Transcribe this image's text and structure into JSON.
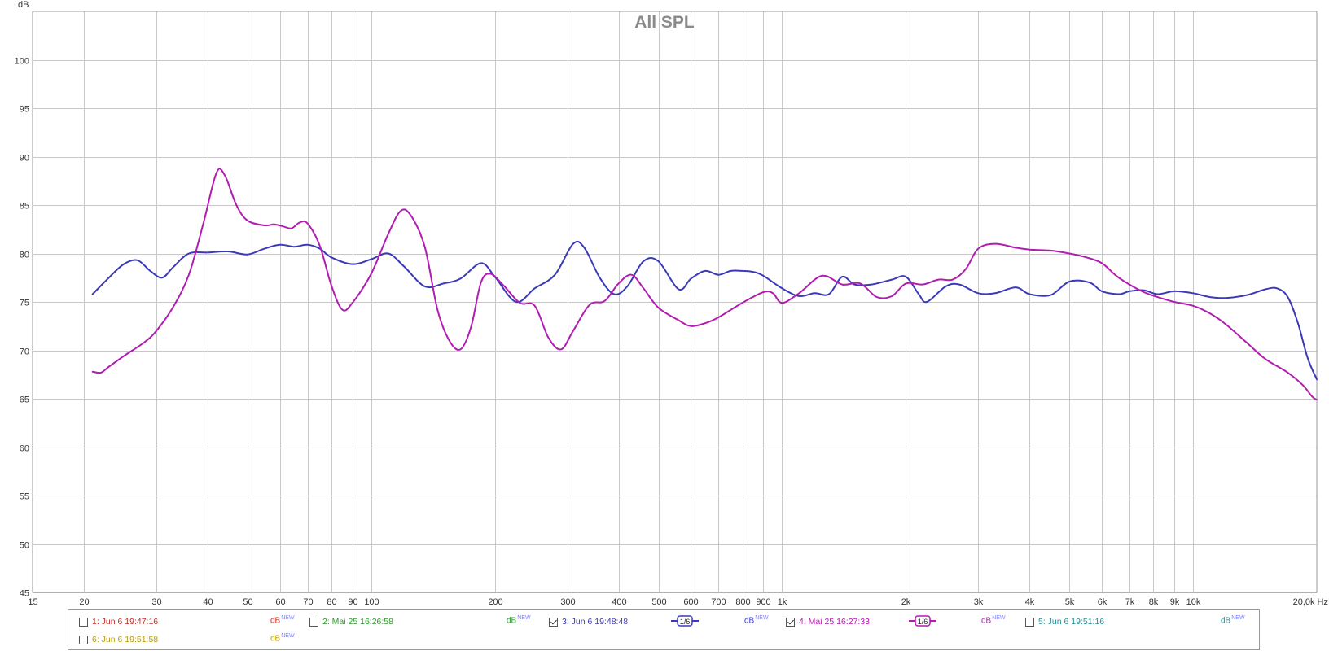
{
  "chart_data": {
    "type": "line",
    "title": "All SPL",
    "ylabel": "dB",
    "xlabel": "Hz",
    "xscale": "log",
    "xlim": [
      15,
      20000
    ],
    "ylim": [
      45,
      105
    ],
    "grid": true,
    "y_ticks": [
      45,
      50,
      55,
      60,
      65,
      70,
      75,
      80,
      85,
      90,
      95,
      100
    ],
    "x_ticks": [
      {
        "value": 15,
        "label": "15"
      },
      {
        "value": 20,
        "label": "20"
      },
      {
        "value": 30,
        "label": "30"
      },
      {
        "value": 40,
        "label": "40"
      },
      {
        "value": 50,
        "label": "50"
      },
      {
        "value": 60,
        "label": "60"
      },
      {
        "value": 70,
        "label": "70"
      },
      {
        "value": 80,
        "label": "80"
      },
      {
        "value": 90,
        "label": "90"
      },
      {
        "value": 100,
        "label": "100"
      },
      {
        "value": 200,
        "label": "200"
      },
      {
        "value": 300,
        "label": "300"
      },
      {
        "value": 400,
        "label": "400"
      },
      {
        "value": 500,
        "label": "500"
      },
      {
        "value": 600,
        "label": "600"
      },
      {
        "value": 700,
        "label": "700"
      },
      {
        "value": 800,
        "label": "800"
      },
      {
        "value": 900,
        "label": "900"
      },
      {
        "value": 1000,
        "label": "1k"
      },
      {
        "value": 2000,
        "label": "2k"
      },
      {
        "value": 3000,
        "label": "3k"
      },
      {
        "value": 4000,
        "label": "4k"
      },
      {
        "value": 5000,
        "label": "5k"
      },
      {
        "value": 6000,
        "label": "6k"
      },
      {
        "value": 7000,
        "label": "7k"
      },
      {
        "value": 8000,
        "label": "8k"
      },
      {
        "value": 9000,
        "label": "9k"
      },
      {
        "value": 10000,
        "label": "10k"
      },
      {
        "value": 20000,
        "label": "20,0k Hz"
      }
    ],
    "series": [
      {
        "name": "3: Jun 6 19:48:48",
        "color": "#3a3ab8",
        "points": [
          [
            21,
            75.8
          ],
          [
            23,
            77.5
          ],
          [
            25,
            78.9
          ],
          [
            27,
            79.3
          ],
          [
            29,
            78.2
          ],
          [
            31,
            77.5
          ],
          [
            33,
            78.6
          ],
          [
            36,
            80.0
          ],
          [
            40,
            80.1
          ],
          [
            45,
            80.2
          ],
          [
            50,
            79.9
          ],
          [
            55,
            80.5
          ],
          [
            60,
            80.9
          ],
          [
            65,
            80.7
          ],
          [
            70,
            80.9
          ],
          [
            75,
            80.5
          ],
          [
            80,
            79.6
          ],
          [
            90,
            78.9
          ],
          [
            100,
            79.4
          ],
          [
            110,
            80.0
          ],
          [
            120,
            78.7
          ],
          [
            135,
            76.6
          ],
          [
            150,
            76.9
          ],
          [
            165,
            77.4
          ],
          [
            185,
            79.0
          ],
          [
            200,
            77.6
          ],
          [
            225,
            75.0
          ],
          [
            250,
            76.4
          ],
          [
            280,
            77.8
          ],
          [
            310,
            81.0
          ],
          [
            330,
            80.6
          ],
          [
            360,
            77.5
          ],
          [
            390,
            75.8
          ],
          [
            420,
            76.6
          ],
          [
            460,
            79.2
          ],
          [
            500,
            79.2
          ],
          [
            560,
            76.3
          ],
          [
            600,
            77.4
          ],
          [
            650,
            78.2
          ],
          [
            700,
            77.8
          ],
          [
            750,
            78.2
          ],
          [
            800,
            78.2
          ],
          [
            850,
            78.1
          ],
          [
            900,
            77.7
          ],
          [
            1000,
            76.4
          ],
          [
            1100,
            75.6
          ],
          [
            1200,
            75.9
          ],
          [
            1300,
            75.8
          ],
          [
            1400,
            77.6
          ],
          [
            1500,
            76.8
          ],
          [
            1650,
            76.8
          ],
          [
            1850,
            77.3
          ],
          [
            2000,
            77.6
          ],
          [
            2150,
            75.8
          ],
          [
            2250,
            75.0
          ],
          [
            2500,
            76.6
          ],
          [
            2700,
            76.8
          ],
          [
            3000,
            75.9
          ],
          [
            3300,
            75.9
          ],
          [
            3700,
            76.5
          ],
          [
            4000,
            75.8
          ],
          [
            4500,
            75.7
          ],
          [
            5000,
            77.1
          ],
          [
            5600,
            77.0
          ],
          [
            6000,
            76.1
          ],
          [
            6600,
            75.8
          ],
          [
            7000,
            76.1
          ],
          [
            7600,
            76.2
          ],
          [
            8200,
            75.8
          ],
          [
            9000,
            76.1
          ],
          [
            10000,
            75.9
          ],
          [
            11000,
            75.5
          ],
          [
            12000,
            75.4
          ],
          [
            13500,
            75.7
          ],
          [
            15000,
            76.3
          ],
          [
            16000,
            76.4
          ],
          [
            17000,
            75.5
          ],
          [
            18000,
            72.8
          ],
          [
            19000,
            69.2
          ],
          [
            20000,
            67.0
          ]
        ]
      },
      {
        "name": "4: Mai 25 16:27:33",
        "color": "#b11cb1",
        "points": [
          [
            21,
            67.8
          ],
          [
            22,
            67.7
          ],
          [
            23,
            68.3
          ],
          [
            25,
            69.4
          ],
          [
            28,
            70.8
          ],
          [
            30,
            72.0
          ],
          [
            33,
            74.5
          ],
          [
            36,
            77.8
          ],
          [
            39,
            83.0
          ],
          [
            42,
            88.3
          ],
          [
            44,
            88.1
          ],
          [
            47,
            85.0
          ],
          [
            50,
            83.4
          ],
          [
            55,
            82.9
          ],
          [
            58,
            83.0
          ],
          [
            61,
            82.8
          ],
          [
            64,
            82.6
          ],
          [
            67,
            83.2
          ],
          [
            70,
            83.1
          ],
          [
            75,
            80.8
          ],
          [
            80,
            76.7
          ],
          [
            85,
            74.2
          ],
          [
            90,
            74.9
          ],
          [
            100,
            77.9
          ],
          [
            110,
            82.0
          ],
          [
            118,
            84.4
          ],
          [
            125,
            83.9
          ],
          [
            135,
            80.7
          ],
          [
            145,
            74.2
          ],
          [
            155,
            71.0
          ],
          [
            165,
            70.1
          ],
          [
            175,
            72.4
          ],
          [
            185,
            77.0
          ],
          [
            195,
            77.9
          ],
          [
            210,
            76.7
          ],
          [
            230,
            74.9
          ],
          [
            250,
            74.6
          ],
          [
            270,
            71.3
          ],
          [
            290,
            70.1
          ],
          [
            310,
            72.0
          ],
          [
            340,
            74.7
          ],
          [
            370,
            75.1
          ],
          [
            400,
            76.9
          ],
          [
            430,
            77.8
          ],
          [
            460,
            76.4
          ],
          [
            500,
            74.4
          ],
          [
            560,
            73.1
          ],
          [
            600,
            72.5
          ],
          [
            650,
            72.8
          ],
          [
            700,
            73.4
          ],
          [
            800,
            74.9
          ],
          [
            900,
            76.0
          ],
          [
            950,
            75.9
          ],
          [
            1000,
            74.9
          ],
          [
            1100,
            75.9
          ],
          [
            1250,
            77.7
          ],
          [
            1400,
            76.8
          ],
          [
            1550,
            76.9
          ],
          [
            1700,
            75.5
          ],
          [
            1850,
            75.6
          ],
          [
            2000,
            76.9
          ],
          [
            2200,
            76.8
          ],
          [
            2400,
            77.3
          ],
          [
            2600,
            77.3
          ],
          [
            2800,
            78.4
          ],
          [
            3000,
            80.5
          ],
          [
            3300,
            81.0
          ],
          [
            3700,
            80.6
          ],
          [
            4000,
            80.4
          ],
          [
            4500,
            80.3
          ],
          [
            5000,
            80.0
          ],
          [
            5500,
            79.6
          ],
          [
            6000,
            79.0
          ],
          [
            6500,
            77.7
          ],
          [
            7000,
            76.8
          ],
          [
            7600,
            76.0
          ],
          [
            8200,
            75.5
          ],
          [
            9000,
            75.0
          ],
          [
            10000,
            74.6
          ],
          [
            11000,
            73.8
          ],
          [
            12000,
            72.7
          ],
          [
            13500,
            70.8
          ],
          [
            15000,
            69.1
          ],
          [
            17000,
            67.7
          ],
          [
            18500,
            66.4
          ],
          [
            19500,
            65.2
          ],
          [
            20000,
            64.9
          ]
        ]
      }
    ]
  },
  "legend": {
    "entries": [
      {
        "label": "1: Jun 6 19:47:16",
        "color": "#c0302a",
        "checked": false,
        "db": "dB",
        "db_color": "#c0302a",
        "smoothing": ""
      },
      {
        "label": "2: Mai 25 16:26:58",
        "color": "#2e9a2e",
        "checked": false,
        "db": "dB",
        "db_color": "#2e9a2e",
        "smoothing": ""
      },
      {
        "label": "3: Jun 6 19:48:48",
        "color": "#3a3ab8",
        "checked": true,
        "db": "dB",
        "db_color": "#3a3ab8",
        "smoothing": "1/6"
      },
      {
        "label": "4: Mai 25 16:27:33",
        "color": "#b11cb1",
        "checked": true,
        "db": "dB",
        "db_color": "#b11cb1",
        "smoothing": "1/6"
      },
      {
        "label": "5: Jun 6 19:51:16",
        "color": "#2a8f95",
        "checked": false,
        "db": "dB",
        "db_color": "#2a8f95",
        "smoothing": ""
      },
      {
        "label": "6: Jun 6 19:51:58",
        "color": "#b89a10",
        "checked": false,
        "db": "dB",
        "db_color": "#b89a10",
        "smoothing": ""
      }
    ],
    "new_tag": "NEW"
  }
}
